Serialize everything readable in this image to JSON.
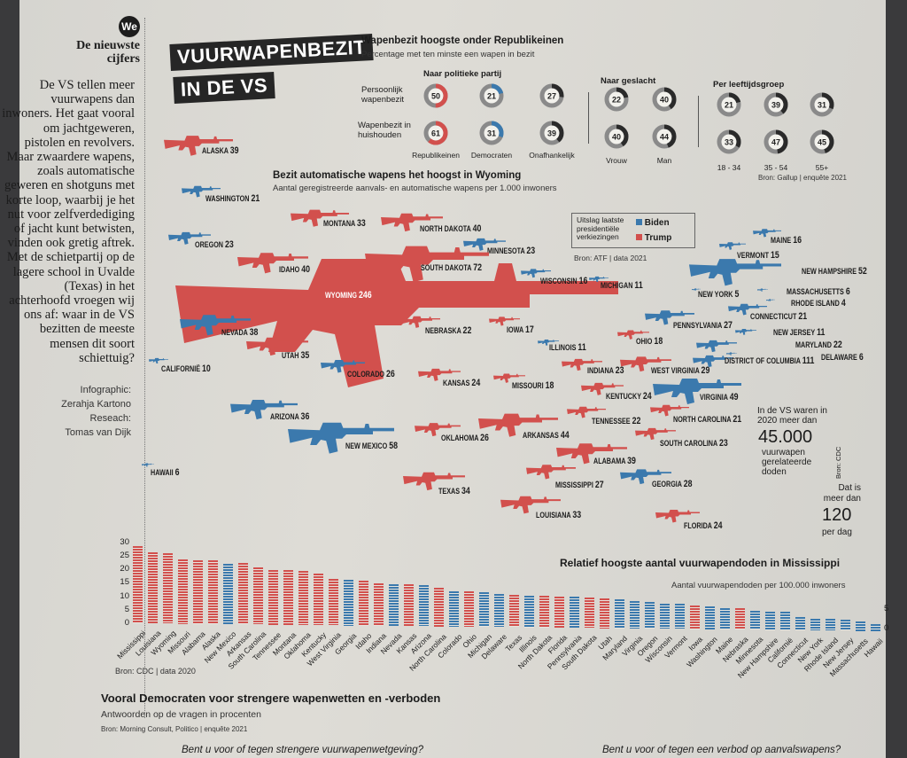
{
  "colors": {
    "trump": "#d2504d",
    "biden": "#3b79ad",
    "neutral": "#2a2a2a",
    "ring": "#8a8a8a"
  },
  "sidebar": {
    "logo": "We",
    "kicker": "De nieuwste cijfers",
    "intro": "De VS tellen meer vuurwapens dan inwoners. Het gaat vooral om jachtgeweren, pistolen en revolvers. Maar zwaardere wapens, zoals automatische geweren en shotguns met korte loop, waarbij je het nut voor zelfverdediging of jacht kunt betwisten, vinden ook gretig aftrek. Met de schietpartij op de lagere school in Uvalde (Texas) in het achterhoofd vroegen wij ons af: waar in de VS bezitten de meeste mensen dit soort schiettuig?",
    "credits": [
      "Infographic:",
      "Zerahja Kartono",
      "Reseach:",
      "Tomas van Dijk"
    ]
  },
  "title": {
    "line1": "VUURWAPENBEZIT",
    "line2": "IN DE VS"
  },
  "ownership": {
    "title": "Wapenbezit hoogste onder Republikeinen",
    "subtitle": "Percentage met ten minste een wapen in bezit",
    "group_party": "Naar politieke partij",
    "group_gender": "Naar geslacht",
    "group_age": "Per leeftijdsgroep",
    "row_labels": [
      "Persoonlijk wapenbezit",
      "Wapenbezit in huishouden"
    ],
    "columns": [
      {
        "label": "Republikeinen",
        "personal": 50,
        "household": 61,
        "color": "trump"
      },
      {
        "label": "Democraten",
        "personal": 21,
        "household": 31,
        "color": "biden"
      },
      {
        "label": "Onafhankelijk",
        "personal": 27,
        "household": 39,
        "color": "neutral"
      },
      {
        "label": "Vrouw",
        "personal": 22,
        "household": 40,
        "color": "neutral"
      },
      {
        "label": "Man",
        "personal": 40,
        "household": 44,
        "color": "neutral"
      },
      {
        "label": "18 - 34",
        "personal": 21,
        "household": 33,
        "color": "neutral"
      },
      {
        "label": "35 - 54",
        "personal": 39,
        "household": 47,
        "color": "neutral"
      },
      {
        "label": "55+",
        "personal": 31,
        "household": 45,
        "color": "neutral"
      }
    ],
    "source": "Bron: Gallup | enquête 2021"
  },
  "map": {
    "title": "Bezit automatische wapens het hoogst in Wyoming",
    "subtitle": "Aantal geregistreerde aanvals- en automatische wapens per 1.000 inwoners",
    "legend": {
      "label": "Uitslag laatste presidentiële verkiezingen",
      "biden": "Biden",
      "trump": "Trump"
    },
    "source": "Bron: ATF | data 2021",
    "states": [
      {
        "name": "ALASKA",
        "value": 39,
        "party": "trump"
      },
      {
        "name": "WASHINGTON",
        "value": 21,
        "party": "biden"
      },
      {
        "name": "OREGON",
        "value": 23,
        "party": "biden"
      },
      {
        "name": "MONTANA",
        "value": 33,
        "party": "trump"
      },
      {
        "name": "NORTH DAKOTA",
        "value": 40,
        "party": "trump"
      },
      {
        "name": "MINNESOTA",
        "value": 23,
        "party": "biden"
      },
      {
        "name": "IDAHO",
        "value": 40,
        "party": "trump"
      },
      {
        "name": "SOUTH DAKOTA",
        "value": 72,
        "party": "trump"
      },
      {
        "name": "WYOMING",
        "value": 246,
        "party": "trump"
      },
      {
        "name": "WISCONSIN",
        "value": 16,
        "party": "biden"
      },
      {
        "name": "MICHIGAN",
        "value": 11,
        "party": "biden"
      },
      {
        "name": "NEVADA",
        "value": 38,
        "party": "biden"
      },
      {
        "name": "NEBRASKA",
        "value": 22,
        "party": "trump"
      },
      {
        "name": "IOWA",
        "value": 17,
        "party": "trump"
      },
      {
        "name": "UTAH",
        "value": 35,
        "party": "trump"
      },
      {
        "name": "CALIFORNIË",
        "value": 10,
        "party": "biden"
      },
      {
        "name": "COLORADO",
        "value": 26,
        "party": "biden"
      },
      {
        "name": "ILLINOIS",
        "value": 11,
        "party": "biden"
      },
      {
        "name": "OHIO",
        "value": 18,
        "party": "trump"
      },
      {
        "name": "PENNSYLVANIA",
        "value": 27,
        "party": "biden"
      },
      {
        "name": "INDIANA",
        "value": 23,
        "party": "trump"
      },
      {
        "name": "WEST VIRGINIA",
        "value": 29,
        "party": "trump"
      },
      {
        "name": "KANSAS",
        "value": 24,
        "party": "trump"
      },
      {
        "name": "MISSOURI",
        "value": 18,
        "party": "trump"
      },
      {
        "name": "KENTUCKY",
        "value": 24,
        "party": "trump"
      },
      {
        "name": "VIRGINIA",
        "value": 49,
        "party": "biden"
      },
      {
        "name": "ARIZONA",
        "value": 36,
        "party": "biden"
      },
      {
        "name": "NEW MEXICO",
        "value": 58,
        "party": "biden"
      },
      {
        "name": "TENNESSEE",
        "value": 22,
        "party": "trump"
      },
      {
        "name": "NORTH CAROLINA",
        "value": 21,
        "party": "trump"
      },
      {
        "name": "OKLAHOMA",
        "value": 26,
        "party": "trump"
      },
      {
        "name": "ARKANSAS",
        "value": 44,
        "party": "trump"
      },
      {
        "name": "SOUTH CAROLINA",
        "value": 23,
        "party": "trump"
      },
      {
        "name": "ALABAMA",
        "value": 39,
        "party": "trump"
      },
      {
        "name": "MISSISSIPPI",
        "value": 27,
        "party": "trump"
      },
      {
        "name": "GEORGIA",
        "value": 28,
        "party": "biden"
      },
      {
        "name": "HAWAII",
        "value": 6,
        "party": "biden"
      },
      {
        "name": "TEXAS",
        "value": 34,
        "party": "trump"
      },
      {
        "name": "LOUISIANA",
        "value": 33,
        "party": "trump"
      },
      {
        "name": "FLORIDA",
        "value": 24,
        "party": "trump"
      },
      {
        "name": "MAINE",
        "value": 16,
        "party": "biden"
      },
      {
        "name": "VERMONT",
        "value": 15,
        "party": "biden"
      },
      {
        "name": "NEW HAMPSHIRE",
        "value": 52,
        "party": "biden"
      },
      {
        "name": "NEW YORK",
        "value": 5,
        "party": "biden"
      },
      {
        "name": "MASSACHUSETTS",
        "value": 6,
        "party": "biden"
      },
      {
        "name": "RHODE ISLAND",
        "value": 4,
        "party": "biden"
      },
      {
        "name": "CONNECTICUT",
        "value": 21,
        "party": "biden"
      },
      {
        "name": "NEW JERSEY",
        "value": 11,
        "party": "biden"
      },
      {
        "name": "MARYLAND",
        "value": 22,
        "party": "biden"
      },
      {
        "name": "DELAWARE",
        "value": 6,
        "party": "biden"
      },
      {
        "name": "DISTRICT OF COLUMBIA",
        "value": 111,
        "party": "biden"
      }
    ]
  },
  "deaths_fact": {
    "intro": "In de VS waren in 2020 meer dan",
    "number": "45.000",
    "desc": "vuurwapen gerelateerde doden",
    "source": "Bron: CDC",
    "per_day_intro": "Dat is meer dan",
    "per_day": "120",
    "per_day_suffix": "per dag"
  },
  "chart_data": {
    "type": "bar",
    "title": "Relatief hoogste aantal vuurwapendoden in Mississippi",
    "ylabel": "Aantal vuurwapendoden per 100.000 inwoners",
    "ylim": [
      0,
      30
    ],
    "yticks": [
      0,
      5,
      10,
      15,
      20,
      25,
      30
    ],
    "source": "Bron: CDC | data 2020",
    "categories": [
      "Mississippi",
      "Louisiana",
      "Wyoming",
      "Missouri",
      "Alabama",
      "Alaska",
      "New Mexico",
      "Arkansas",
      "South Carolina",
      "Tennessee",
      "Montana",
      "Oklahoma",
      "Kentucky",
      "West Virginia",
      "Georgia",
      "Idaho",
      "Indiana",
      "Nevada",
      "Kansas",
      "Arizona",
      "North Carolina",
      "Colorado",
      "Ohio",
      "Michigan",
      "Delaware",
      "Texas",
      "Illinois",
      "North Dakota",
      "Florida",
      "Pennsylvania",
      "South Dakota",
      "Utah",
      "Maryland",
      "Virginia",
      "Oregon",
      "Wisconsin",
      "Vermont",
      "Iowa",
      "Washington",
      "Maine",
      "Nebraska",
      "Minnesota",
      "New Hampshire",
      "Californië",
      "Connecticut",
      "New York",
      "Rhode Island",
      "New Jersey",
      "Massachusetts",
      "Hawaii"
    ],
    "values": [
      28.6,
      26.3,
      25.9,
      23.9,
      23.6,
      23.5,
      22.3,
      22.6,
      21.1,
      20.3,
      20.1,
      19.9,
      19.2,
      17.0,
      16.8,
      16.6,
      15.6,
      15.5,
      15.4,
      15.2,
      14.2,
      13.2,
      13.0,
      12.9,
      12.2,
      11.9,
      11.8,
      11.6,
      11.5,
      11.4,
      11.2,
      11.1,
      10.6,
      10.1,
      9.8,
      9.3,
      9.3,
      8.6,
      8.4,
      8.0,
      7.8,
      6.9,
      6.9,
      6.7,
      4.9,
      4.3,
      4.2,
      4.2,
      3.4,
      2.5
    ],
    "party": [
      "trump",
      "trump",
      "trump",
      "trump",
      "trump",
      "trump",
      "biden",
      "trump",
      "trump",
      "trump",
      "trump",
      "trump",
      "trump",
      "trump",
      "biden",
      "trump",
      "trump",
      "biden",
      "trump",
      "biden",
      "trump",
      "biden",
      "trump",
      "biden",
      "biden",
      "trump",
      "biden",
      "trump",
      "trump",
      "biden",
      "trump",
      "trump",
      "biden",
      "biden",
      "biden",
      "biden",
      "biden",
      "trump",
      "biden",
      "biden",
      "trump",
      "biden",
      "biden",
      "biden",
      "biden",
      "biden",
      "biden",
      "biden",
      "biden",
      "biden"
    ],
    "grid": false,
    "legend": "none"
  },
  "policy": {
    "title": "Vooral Democraten voor strengere wapenwetten en -verboden",
    "subtitle": "Antwoorden op de vragen in procenten",
    "source": "Bron: Morning Consult, Politico | enquête 2021",
    "q1": "Bent u voor of tegen strengere vuurwapenwetgeving?",
    "q2": "Bent u voor of tegen een verbod op aanvalswapens?"
  }
}
